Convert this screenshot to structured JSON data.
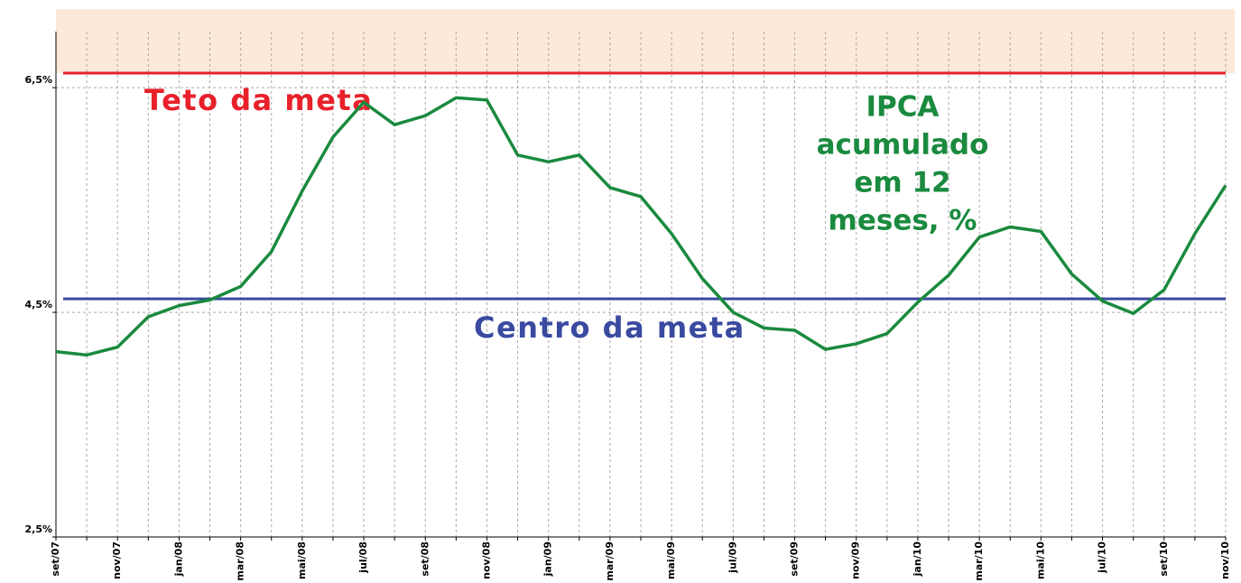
{
  "chart_data": {
    "type": "line",
    "categories": [
      "set/07",
      null,
      "nov/07",
      null,
      "jan/08",
      null,
      "mar/08",
      null,
      "mai/08",
      null,
      "jul/08",
      null,
      "set/08",
      null,
      "nov/08",
      null,
      "jan/09",
      null,
      "mar/09",
      null,
      "mai/09",
      null,
      "jul/09",
      null,
      "set/09",
      null,
      "nov/09",
      null,
      "jan/10",
      null,
      "mar/10",
      null,
      "mai/10",
      null,
      "jul/10",
      null,
      "set/10",
      null,
      "nov/10"
    ],
    "series": [
      {
        "color": "#1a8a3e",
        "values": [
          4.15,
          4.12,
          4.19,
          4.46,
          4.56,
          4.61,
          4.73,
          5.04,
          5.58,
          6.06,
          6.37,
          6.17,
          6.25,
          6.41,
          6.39,
          5.9,
          5.84,
          5.9,
          5.61,
          5.53,
          5.2,
          4.8,
          4.5,
          4.36,
          4.34,
          4.17,
          4.22,
          4.31,
          4.59,
          4.83,
          5.17,
          5.26,
          5.22,
          4.84,
          4.6,
          4.49,
          4.7,
          5.2,
          5.63
        ]
      }
    ],
    "ylim": [
      2.5,
      7.2
    ],
    "yticks": [
      {
        "value": 2.5,
        "label": "2,5%"
      },
      {
        "value": 4.5,
        "label": "4,5%"
      },
      {
        "value": 6.5,
        "label": "6,5%"
      }
    ],
    "grid": true,
    "reference_lines": [
      {
        "label": "Teto da meta",
        "value": 6.63,
        "color": "#e8202a",
        "shade_above": "#fde9d9"
      },
      {
        "label": "Centro da meta",
        "value": 4.62,
        "color": "#3a4aa0"
      }
    ],
    "annotation": {
      "lines": [
        "IPCA",
        "acumulado",
        "em 12",
        "meses, %"
      ],
      "color": "#1a8a3e"
    }
  }
}
